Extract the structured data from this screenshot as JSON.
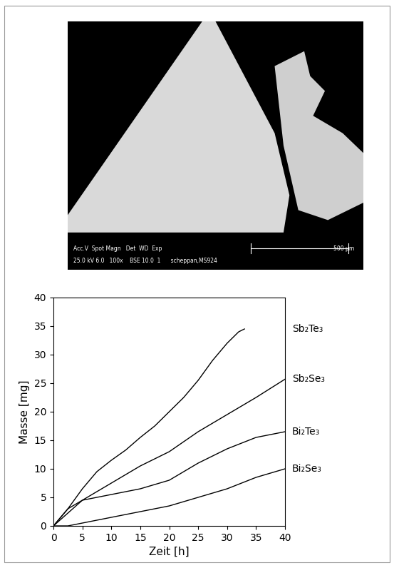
{
  "micrograph": {
    "info_lines": [
      "Acc.V  Spot Magn   Det  WD  Exp",
      "25.0 kV 6.0   100x    BSE 10.0  1      scheppan,MS924"
    ],
    "scale_bar": "500 µm"
  },
  "chart_data": {
    "type": "line",
    "x_label": "Zeit [h]",
    "y_label": "Masse [mg]",
    "xlim": [
      0,
      40
    ],
    "xticks": [
      0,
      5,
      10,
      15,
      20,
      25,
      30,
      35,
      40
    ],
    "ylim": [
      0,
      40
    ],
    "yticks": [
      0,
      5,
      10,
      15,
      20,
      25,
      30,
      35,
      40
    ],
    "grid": false,
    "series": [
      {
        "name": "Sb₂Te₃",
        "color": "#000000",
        "x": [
          0,
          2.5,
          5,
          7.5,
          10,
          12.5,
          15,
          17.5,
          20,
          22.5,
          25,
          27.5,
          30,
          32,
          33
        ],
        "values": [
          0,
          3,
          6.5,
          9.5,
          11.5,
          13.3,
          15.5,
          17.5,
          20,
          22.5,
          25.5,
          29,
          32,
          34,
          34.5
        ]
      },
      {
        "name": "Sb₂Se₃",
        "color": "#000000",
        "x": [
          0,
          5,
          10,
          15,
          20,
          25,
          30,
          35,
          40
        ],
        "values": [
          0,
          4.5,
          7.5,
          10.5,
          13,
          16.5,
          19.5,
          22.5,
          25.7
        ]
      },
      {
        "name": "Bi₂Te₃",
        "color": "#000000",
        "x": [
          0,
          2.5,
          5,
          10,
          15,
          20,
          25,
          30,
          35,
          40
        ],
        "values": [
          0,
          3,
          4.5,
          5.5,
          6.5,
          8,
          11,
          13.5,
          15.5,
          16.5
        ]
      },
      {
        "name": "Bi₂Se₃",
        "color": "#000000",
        "x": [
          0,
          2.5,
          5,
          10,
          15,
          20,
          25,
          30,
          35,
          40
        ],
        "values": [
          0,
          0,
          0.5,
          1.5,
          2.5,
          3.5,
          5,
          6.5,
          8.5,
          10
        ]
      }
    ]
  }
}
